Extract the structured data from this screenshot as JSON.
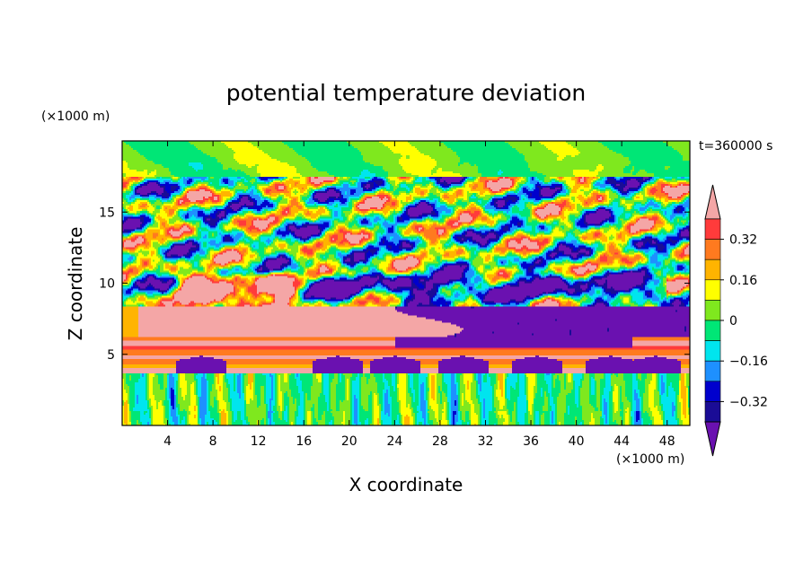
{
  "chart_data": {
    "type": "heatmap",
    "title": "potential temperature deviation",
    "xlabel": "X coordinate",
    "ylabel": "Z coordinate",
    "x_unit": "(×1000 m)",
    "y_unit": "(×1000 m)",
    "time_label": "t=360000 s",
    "xlim": [
      0,
      50
    ],
    "ylim": [
      0,
      20
    ],
    "x_ticks": [
      4,
      8,
      12,
      16,
      20,
      24,
      28,
      32,
      36,
      40,
      44,
      48
    ],
    "y_ticks": [
      5,
      10,
      15
    ],
    "colorbar": {
      "tick_labels": [
        "0.32",
        "0.16",
        "0",
        "−0.16",
        "−0.32"
      ],
      "tick_values": [
        0.32,
        0.16,
        0,
        -0.16,
        -0.32
      ],
      "levels": [
        {
          "lo": 0.4,
          "hi": null,
          "color": "#f4a6a6"
        },
        {
          "lo": 0.32,
          "hi": 0.4,
          "color": "#ff3b3b"
        },
        {
          "lo": 0.24,
          "hi": 0.32,
          "color": "#ff7a1f"
        },
        {
          "lo": 0.16,
          "hi": 0.24,
          "color": "#ffb400"
        },
        {
          "lo": 0.08,
          "hi": 0.16,
          "color": "#ffff00"
        },
        {
          "lo": 0.0,
          "hi": 0.08,
          "color": "#7fe81e"
        },
        {
          "lo": -0.08,
          "hi": 0.0,
          "color": "#00e676"
        },
        {
          "lo": -0.16,
          "hi": -0.08,
          "color": "#00e5ee"
        },
        {
          "lo": -0.24,
          "hi": -0.16,
          "color": "#1e90ff"
        },
        {
          "lo": -0.32,
          "hi": -0.24,
          "color": "#0000cd"
        },
        {
          "lo": -0.4,
          "hi": -0.32,
          "color": "#1a0c96"
        },
        {
          "lo": null,
          "hi": -0.4,
          "color": "#6a11b0"
        }
      ]
    }
  }
}
